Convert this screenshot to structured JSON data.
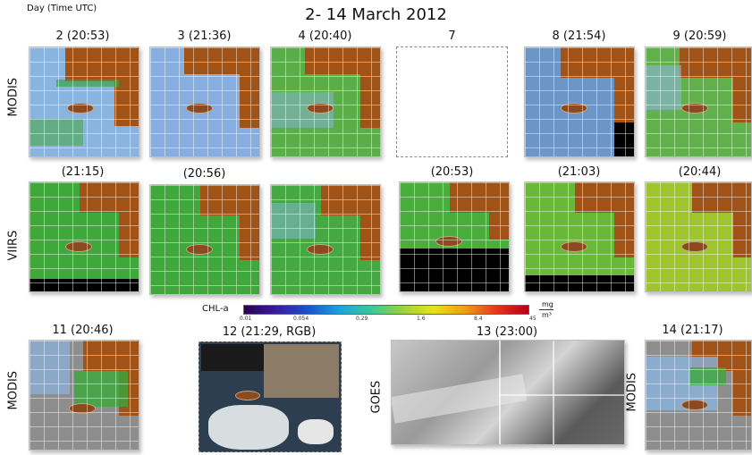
{
  "title": "2- 14 March 2012",
  "header": {
    "day_caption": "Day (Time UTC)"
  },
  "row_labels": {
    "modis": "MODIS",
    "viirs": "VIIRS",
    "modis_bottom": "MODIS",
    "goes": "GOES",
    "modis_right": "MODIS"
  },
  "row1": [
    {
      "label": "2 (20:53)"
    },
    {
      "label": "3 (21:36)"
    },
    {
      "label": "4 (20:40)"
    },
    {
      "label": "7"
    },
    {
      "label": "8 (21:54)"
    },
    {
      "label": "9 (20:59)"
    }
  ],
  "row2": [
    {
      "label": "(21:15)"
    },
    {
      "label": "(20:56)"
    },
    {
      "label": ""
    },
    {
      "label": "(20:53)"
    },
    {
      "label": "(21:03)"
    },
    {
      "label": "(20:44)"
    }
  ],
  "row3": [
    {
      "label": "11 (20:46)"
    },
    {
      "label": "12 (21:29, RGB)"
    },
    {
      "label": "13 (23:00)"
    },
    {
      "label": "14 (21:17)"
    }
  ],
  "colorbar": {
    "name": "CHL-a",
    "ticks": [
      "0.01",
      "0.054",
      "0.29",
      "1.6",
      "8.4",
      "45"
    ],
    "unit_top": "mg",
    "unit_bottom": "m³",
    "colors": [
      "#2a0050",
      "#1a4fcf",
      "#35c99a",
      "#e8e21b",
      "#e0371b"
    ]
  }
}
